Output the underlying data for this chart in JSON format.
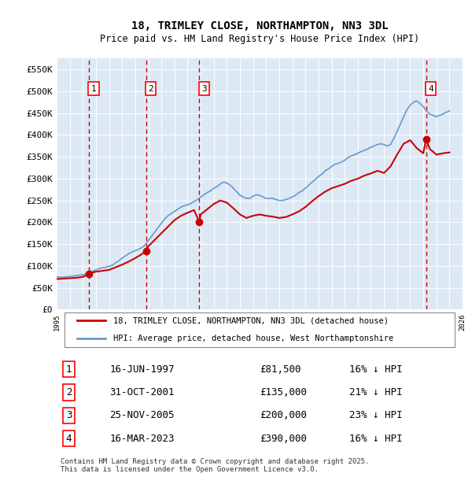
{
  "title": "18, TRIMLEY CLOSE, NORTHAMPTON, NN3 3DL",
  "subtitle": "Price paid vs. HM Land Registry's House Price Index (HPI)",
  "ylabel": "",
  "background_color": "#dce9f5",
  "plot_bg_color": "#dce9f5",
  "y_min": 0,
  "y_max": 575000,
  "y_ticks": [
    0,
    50000,
    100000,
    150000,
    200000,
    250000,
    300000,
    350000,
    400000,
    450000,
    500000,
    550000
  ],
  "y_tick_labels": [
    "£0",
    "£50K",
    "£100K",
    "£150K",
    "£200K",
    "£250K",
    "£300K",
    "£350K",
    "£400K",
    "£450K",
    "£500K",
    "£550K"
  ],
  "x_min": 1995,
  "x_max": 2026,
  "red_line_color": "#cc0000",
  "blue_line_color": "#6699cc",
  "sale_marker_color": "#cc0000",
  "dashed_line_color": "#cc0000",
  "legend_label_red": "18, TRIMLEY CLOSE, NORTHAMPTON, NN3 3DL (detached house)",
  "legend_label_blue": "HPI: Average price, detached house, West Northamptonshire",
  "footer_text": "Contains HM Land Registry data © Crown copyright and database right 2025.\nThis data is licensed under the Open Government Licence v3.0.",
  "sales": [
    {
      "num": 1,
      "date": "16-JUN-1997",
      "price": 81500,
      "pct": "16%",
      "dir": "↓",
      "x": 1997.46
    },
    {
      "num": 2,
      "date": "31-OCT-2001",
      "price": 135000,
      "pct": "21%",
      "dir": "↓",
      "x": 2001.83
    },
    {
      "num": 3,
      "date": "25-NOV-2005",
      "price": 200000,
      "pct": "23%",
      "dir": "↓",
      "x": 2005.9
    },
    {
      "num": 4,
      "date": "16-MAR-2023",
      "price": 390000,
      "pct": "16%",
      "dir": "↓",
      "x": 2023.21
    }
  ],
  "hpi_years": [
    1995.0,
    1995.25,
    1995.5,
    1995.75,
    1996.0,
    1996.25,
    1996.5,
    1996.75,
    1997.0,
    1997.25,
    1997.5,
    1997.75,
    1998.0,
    1998.25,
    1998.5,
    1998.75,
    1999.0,
    1999.25,
    1999.5,
    1999.75,
    2000.0,
    2000.25,
    2000.5,
    2000.75,
    2001.0,
    2001.25,
    2001.5,
    2001.75,
    2002.0,
    2002.25,
    2002.5,
    2002.75,
    2003.0,
    2003.25,
    2003.5,
    2003.75,
    2004.0,
    2004.25,
    2004.5,
    2004.75,
    2005.0,
    2005.25,
    2005.5,
    2005.75,
    2006.0,
    2006.25,
    2006.5,
    2006.75,
    2007.0,
    2007.25,
    2007.5,
    2007.75,
    2008.0,
    2008.25,
    2008.5,
    2008.75,
    2009.0,
    2009.25,
    2009.5,
    2009.75,
    2010.0,
    2010.25,
    2010.5,
    2010.75,
    2011.0,
    2011.25,
    2011.5,
    2011.75,
    2012.0,
    2012.25,
    2012.5,
    2012.75,
    2013.0,
    2013.25,
    2013.5,
    2013.75,
    2014.0,
    2014.25,
    2014.5,
    2014.75,
    2015.0,
    2015.25,
    2015.5,
    2015.75,
    2016.0,
    2016.25,
    2016.5,
    2016.75,
    2017.0,
    2017.25,
    2017.5,
    2017.75,
    2018.0,
    2018.25,
    2018.5,
    2018.75,
    2019.0,
    2019.25,
    2019.5,
    2019.75,
    2020.0,
    2020.25,
    2020.5,
    2020.75,
    2021.0,
    2021.25,
    2021.5,
    2021.75,
    2022.0,
    2022.25,
    2022.5,
    2022.75,
    2023.0,
    2023.25,
    2023.5,
    2023.75,
    2024.0,
    2024.25,
    2024.5,
    2024.75,
    2025.0
  ],
  "hpi_values": [
    75000,
    74000,
    74500,
    75000,
    76000,
    77000,
    78000,
    79000,
    80000,
    82000,
    85000,
    88000,
    91000,
    94000,
    96000,
    97000,
    99000,
    102000,
    107000,
    112000,
    118000,
    123000,
    128000,
    132000,
    135000,
    138000,
    142000,
    148000,
    158000,
    168000,
    178000,
    188000,
    198000,
    208000,
    215000,
    220000,
    225000,
    230000,
    235000,
    238000,
    240000,
    243000,
    248000,
    252000,
    258000,
    263000,
    268000,
    272000,
    278000,
    282000,
    288000,
    292000,
    290000,
    285000,
    278000,
    270000,
    262000,
    258000,
    255000,
    255000,
    260000,
    263000,
    262000,
    258000,
    255000,
    255000,
    255000,
    252000,
    250000,
    250000,
    252000,
    255000,
    258000,
    262000,
    268000,
    272000,
    278000,
    285000,
    292000,
    298000,
    305000,
    310000,
    318000,
    322000,
    328000,
    333000,
    335000,
    338000,
    342000,
    348000,
    352000,
    355000,
    358000,
    362000,
    365000,
    368000,
    372000,
    375000,
    378000,
    380000,
    378000,
    375000,
    378000,
    392000,
    408000,
    425000,
    442000,
    458000,
    468000,
    475000,
    478000,
    472000,
    465000,
    455000,
    448000,
    445000,
    442000,
    445000,
    448000,
    452000,
    455000
  ],
  "price_years": [
    1995.0,
    1995.5,
    1996.0,
    1996.5,
    1997.0,
    1997.46,
    1997.75,
    1998.0,
    1998.5,
    1999.0,
    1999.5,
    2000.0,
    2000.5,
    2001.0,
    2001.5,
    2001.83,
    2002.0,
    2002.5,
    2003.0,
    2003.5,
    2004.0,
    2004.5,
    2005.0,
    2005.5,
    2005.9,
    2006.0,
    2006.5,
    2007.0,
    2007.5,
    2008.0,
    2008.5,
    2009.0,
    2009.5,
    2010.0,
    2010.5,
    2011.0,
    2011.5,
    2012.0,
    2012.5,
    2013.0,
    2013.5,
    2014.0,
    2014.5,
    2015.0,
    2015.5,
    2016.0,
    2016.5,
    2017.0,
    2017.5,
    2018.0,
    2018.5,
    2019.0,
    2019.5,
    2020.0,
    2020.5,
    2021.0,
    2021.5,
    2022.0,
    2022.5,
    2023.0,
    2023.21,
    2023.5,
    2024.0,
    2024.5,
    2025.0
  ],
  "price_values": [
    70000,
    71000,
    72000,
    73000,
    75000,
    81500,
    85000,
    87000,
    89000,
    91000,
    97000,
    103000,
    110000,
    118000,
    127000,
    135000,
    145000,
    160000,
    175000,
    190000,
    205000,
    215000,
    222000,
    228000,
    200000,
    218000,
    230000,
    242000,
    250000,
    245000,
    232000,
    218000,
    210000,
    215000,
    218000,
    215000,
    213000,
    210000,
    212000,
    218000,
    225000,
    235000,
    248000,
    260000,
    270000,
    278000,
    283000,
    288000,
    295000,
    300000,
    307000,
    312000,
    318000,
    313000,
    328000,
    355000,
    380000,
    388000,
    370000,
    358000,
    390000,
    368000,
    355000,
    358000,
    360000
  ]
}
